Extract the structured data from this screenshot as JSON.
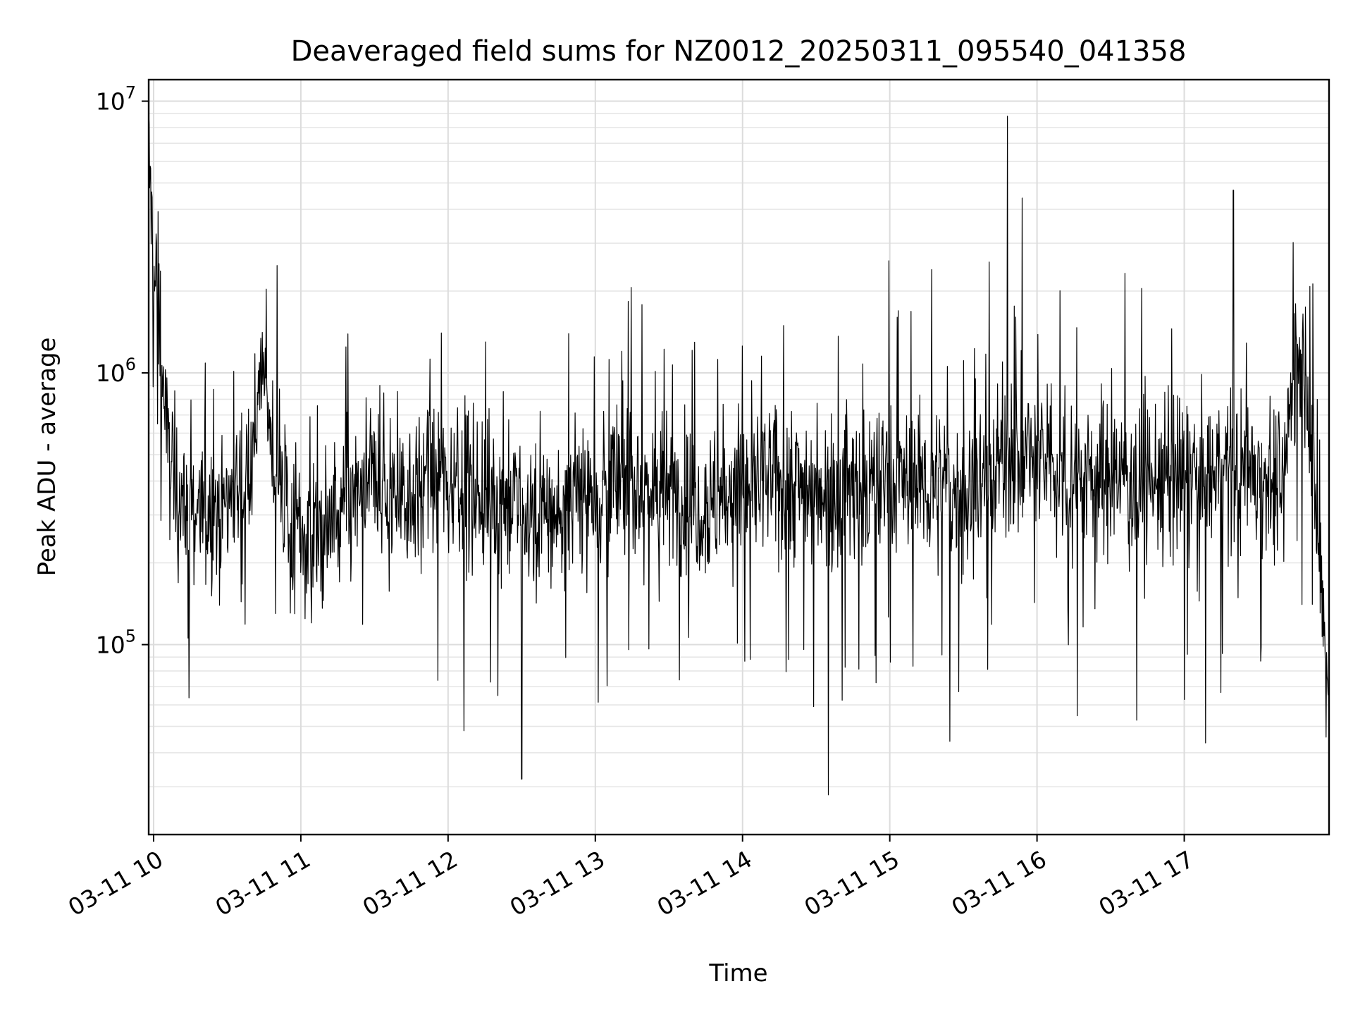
{
  "chart_data": {
    "type": "line",
    "title": "Deaveraged field sums for NZ0012_20250311_095540_041358",
    "xlabel": "Time",
    "ylabel": "Peak ADU - average",
    "yscale": "log",
    "ylim": [
      20000,
      12000000
    ],
    "xlim": [
      "03-11 09:58",
      "03-11 17:59"
    ],
    "grid": true,
    "x_ticks": [
      "03-11 10",
      "03-11 11",
      "03-11 12",
      "03-11 13",
      "03-11 14",
      "03-11 15",
      "03-11 16",
      "03-11 17"
    ],
    "y_ticks": [
      {
        "base": "10",
        "exp": "5",
        "value": 100000
      },
      {
        "base": "10",
        "exp": "6",
        "value": 1000000
      },
      {
        "base": "10",
        "exp": "7",
        "value": 10000000
      }
    ],
    "series": [
      {
        "x": [
          "03-11 09:58",
          "03-11 10:00",
          "03-11 10:02",
          "03-11 10:05",
          "03-11 10:10",
          "03-11 10:15",
          "03-11 10:20",
          "03-11 10:30",
          "03-11 10:40",
          "03-11 10:45",
          "03-11 10:50",
          "03-11 11:00",
          "03-11 11:10",
          "03-11 11:20",
          "03-11 11:30",
          "03-11 11:40",
          "03-11 11:50",
          "03-11 12:00",
          "03-11 12:15",
          "03-11 12:30",
          "03-11 12:45",
          "03-11 13:00",
          "03-11 13:15",
          "03-11 13:30",
          "03-11 13:45",
          "03-11 14:00",
          "03-11 14:15",
          "03-11 14:30",
          "03-11 14:45",
          "03-11 15:00",
          "03-11 15:15",
          "03-11 15:30",
          "03-11 15:45",
          "03-11 16:00",
          "03-11 16:15",
          "03-11 16:30",
          "03-11 16:45",
          "03-11 17:00",
          "03-11 17:15",
          "03-11 17:30",
          "03-11 17:40",
          "03-11 17:45",
          "03-11 17:50",
          "03-11 17:55",
          "03-11 17:59"
        ],
        "y": [
          6500000,
          2500000,
          1800000,
          600000,
          350000,
          320000,
          300000,
          340000,
          500000,
          1100000,
          400000,
          250000,
          260000,
          330000,
          380000,
          360000,
          380000,
          420000,
          360000,
          300000,
          300000,
          380000,
          400000,
          360000,
          330000,
          380000,
          400000,
          380000,
          370000,
          400000,
          390000,
          350000,
          480000,
          470000,
          420000,
          420000,
          400000,
          400000,
          420000,
          450000,
          350000,
          1300000,
          900000,
          200000,
          60000
        ]
      }
    ],
    "notable_peaks": [
      {
        "x": "03-11 15:48",
        "y": 8800000
      },
      {
        "x": "03-11 15:54",
        "y": 4400000
      },
      {
        "x": "03-11 17:20",
        "y": 4700000
      },
      {
        "x": "03-11 15:17",
        "y": 2400000
      }
    ],
    "notable_dips": [
      {
        "x": "03-11 14:35",
        "y": 28000
      },
      {
        "x": "03-11 12:30",
        "y": 32000
      }
    ]
  }
}
